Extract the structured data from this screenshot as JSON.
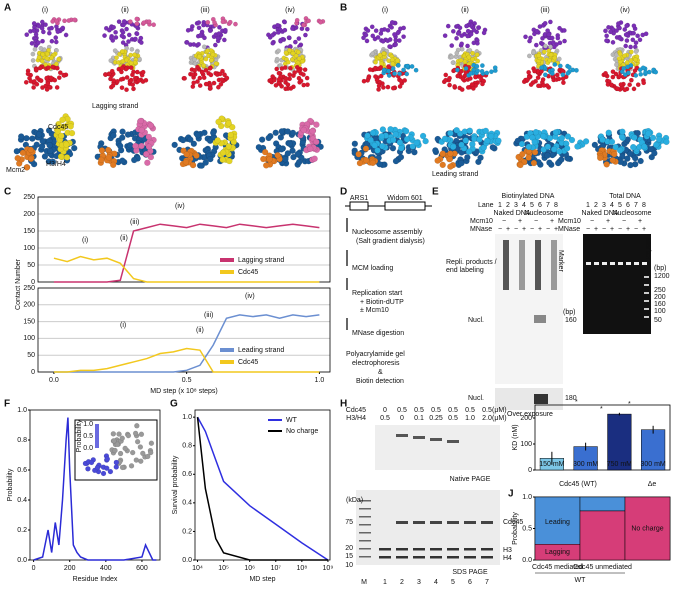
{
  "figure": {
    "panel_letters": [
      "A",
      "B",
      "C",
      "D",
      "E",
      "F",
      "G",
      "H",
      "I",
      "J"
    ],
    "panel_a": {
      "stages": [
        "(i)",
        "(ii)",
        "(iii)",
        "(iv)"
      ],
      "labels": [
        "Cdc45",
        "Lagging strand",
        "Mcm2",
        "H3/H4"
      ]
    },
    "panel_b": {
      "stages": [
        "(i)",
        "(ii)",
        "(iii)",
        "(iv)"
      ],
      "labels": [
        "Leading strand"
      ]
    },
    "panel_d": {
      "elements": [
        "ARS1",
        "Widom 601"
      ],
      "steps": [
        "Nucleosome assembly",
        "(Salt gradient dialysis)",
        "MCM loading",
        "Replication start",
        "+ Biotin-dUTP",
        "± Mcm10",
        "MNase digestion",
        "Polyacrylamide gel",
        "electrophoresis",
        "&",
        "Biotin detection"
      ]
    },
    "panel_e": {
      "title_left": "Biotinylated DNA",
      "title_right": "Total DNA",
      "lane_label": "Lane",
      "lanes": [
        "1",
        "2",
        "3",
        "4",
        "5",
        "6",
        "7",
        "8"
      ],
      "conditions": [
        "Naked DNA",
        "Nucleosome"
      ],
      "rows": [
        "Mcm10",
        "MNase"
      ],
      "mcm10_signs": [
        "−",
        "+",
        "−",
        "+"
      ],
      "mnase_signs": [
        "−",
        "+",
        "−",
        "+",
        "−",
        "+",
        "−",
        "+"
      ],
      "left_labels": [
        "Repli. products /",
        "end labeling",
        "Nucl.",
        "Nucl."
      ],
      "bp_unit": "(bp)",
      "left_bp": [
        "160",
        "180"
      ],
      "over": "Over exposure",
      "marker": "Marker",
      "right_bp": [
        "1200",
        "250",
        "200",
        "160",
        "100",
        "50"
      ]
    },
    "panel_h": {
      "rows": [
        {
          "name": "Cdc45",
          "values": [
            "0",
            "0.5",
            "0.5",
            "0.5",
            "0.5",
            "0.5",
            "0.5"
          ]
        },
        {
          "name": "H3/H4",
          "values": [
            "0.5",
            "0",
            "0.1",
            "0.25",
            "0.5",
            "1.0",
            "2.0"
          ]
        }
      ],
      "unit": "(μM)",
      "native": "Native PAGE",
      "kda": "(kDa)",
      "marker_kda": [
        "75",
        "20",
        "15",
        "10"
      ],
      "bands": [
        "Cdc45",
        "H3",
        "H4"
      ],
      "sds": "SDS PAGE",
      "lanes": [
        "M",
        "1",
        "2",
        "3",
        "4",
        "5",
        "6",
        "7"
      ]
    },
    "panel_i_groups": [
      "Cdc45 (WT)",
      "Δe"
    ]
  },
  "chart_data": [
    {
      "type": "line",
      "ylabel": "Contact Number",
      "xlim": [
        -0.06,
        1.04
      ],
      "ylim": [
        0,
        250
      ],
      "yticks": [
        0,
        50,
        100,
        150,
        200,
        250
      ],
      "grid": true,
      "legend": "lower right",
      "x": [
        0,
        0.05,
        0.1,
        0.15,
        0.2,
        0.25,
        0.3,
        0.35,
        0.4,
        0.45,
        0.5,
        0.55,
        0.6,
        0.65,
        0.7,
        0.75,
        0.8,
        0.85,
        0.9,
        0.95,
        1
      ],
      "series": [
        {
          "name": "Lagging strand",
          "color": "#c8336f",
          "values": [
            0,
            0,
            0,
            0,
            0,
            5,
            150,
            160,
            170,
            165,
            160,
            170,
            165,
            160,
            170,
            165,
            160,
            165,
            170,
            165,
            160
          ]
        },
        {
          "name": "Cdc45",
          "color": "#f2c81e",
          "values": [
            70,
            60,
            75,
            65,
            70,
            55,
            10,
            0,
            0,
            0,
            0,
            0,
            0,
            0,
            0,
            0,
            0,
            0,
            0,
            0,
            0
          ]
        }
      ],
      "annotations": [
        "(i)",
        "(ii)",
        "(iii)",
        "(iv)"
      ]
    },
    {
      "type": "line",
      "xlabel": "MD step (x 10⁸ steps)",
      "xlim": [
        -0.06,
        1.04
      ],
      "ylim": [
        0,
        250
      ],
      "yticks": [
        0,
        50,
        100,
        150,
        200,
        250
      ],
      "xticks": [
        {
          "value": 0,
          "label": "0.0"
        },
        {
          "value": 0.5,
          "label": "0.5"
        },
        {
          "value": 1,
          "label": "1.0"
        }
      ],
      "grid": true,
      "legend": "lower right",
      "x": [
        0,
        0.05,
        0.1,
        0.15,
        0.2,
        0.25,
        0.3,
        0.35,
        0.4,
        0.45,
        0.5,
        0.55,
        0.6,
        0.65,
        0.7,
        0.75,
        0.8,
        0.85,
        0.9,
        0.95,
        1
      ],
      "series": [
        {
          "name": "Leading strand",
          "color": "#6b8fd1",
          "values": [
            0,
            0,
            0,
            0,
            0,
            0,
            0,
            0,
            0,
            0,
            5,
            20,
            80,
            160,
            170,
            165,
            170,
            160,
            170,
            165,
            170
          ]
        },
        {
          "name": "Cdc45",
          "color": "#f2c81e",
          "values": [
            0,
            0,
            5,
            5,
            10,
            20,
            30,
            40,
            55,
            60,
            70,
            65,
            0,
            0,
            0,
            0,
            0,
            0,
            0,
            0,
            0
          ]
        }
      ],
      "annotations": [
        "(i)",
        "(ii)",
        "(iii)",
        "(iv)"
      ]
    },
    {
      "type": "line",
      "xlabel": "Residue Index",
      "ylabel": "Probability",
      "xlim": [
        -20,
        700
      ],
      "ylim": [
        0,
        1
      ],
      "xticks": [
        0,
        200,
        400,
        600
      ],
      "yticks": [
        {
          "value": 0,
          "label": "0.0"
        },
        {
          "value": 0.2,
          "label": "0.2"
        },
        {
          "value": 0.4,
          "label": "0.4"
        },
        {
          "value": 0.6,
          "label": "0.6"
        },
        {
          "value": 0.8,
          "label": "0.8"
        },
        {
          "value": 1,
          "label": "1.0"
        }
      ],
      "x": [
        0,
        50,
        80,
        100,
        120,
        140,
        160,
        180,
        190,
        200,
        220,
        240,
        260,
        300,
        400,
        500,
        600,
        620,
        640,
        660,
        680
      ],
      "series": [
        {
          "name": "Probability",
          "color": "#2b2bd6",
          "values": [
            0,
            0.02,
            0.2,
            0.05,
            0.25,
            0.1,
            0.4,
            0.8,
            0.95,
            0.6,
            0.1,
            0.05,
            0.02,
            0,
            0,
            0,
            0.02,
            0.1,
            0.05,
            0,
            0
          ]
        }
      ],
      "inset": {
        "title": "Probability",
        "ticks": [
          {
            "value": 1,
            "label": "1.0"
          },
          {
            "value": 0.5,
            "label": "0.5"
          },
          {
            "value": 0,
            "label": "0.0"
          }
        ]
      }
    },
    {
      "type": "line",
      "log_x": true,
      "xlabel": "MD step",
      "ylabel": "Survival probability",
      "xlim": [
        8000,
        1200000000
      ],
      "ylim": [
        0,
        1.05
      ],
      "legend": "upper right",
      "xticks": [
        {
          "value": 10000,
          "label": "10⁴"
        },
        {
          "value": 100000,
          "label": "10⁵"
        },
        {
          "value": 1000000,
          "label": "10⁶"
        },
        {
          "value": 10000000,
          "label": "10⁷"
        },
        {
          "value": 100000000,
          "label": "10⁸"
        },
        {
          "value": 1000000000,
          "label": "10⁹"
        }
      ],
      "yticks": [
        {
          "value": 0,
          "label": "0.0"
        },
        {
          "value": 0.2,
          "label": "0.2"
        },
        {
          "value": 0.4,
          "label": "0.4"
        },
        {
          "value": 0.6,
          "label": "0.6"
        },
        {
          "value": 0.8,
          "label": "0.8"
        },
        {
          "value": 1,
          "label": "1.0"
        }
      ],
      "x": [
        10000,
        20000,
        50000,
        100000,
        1000000,
        10000000,
        100000000,
        1000000000
      ],
      "series": [
        {
          "name": "WT",
          "color": "#2f2fe0",
          "values": [
            1,
            0.9,
            0.7,
            0.55,
            0.38,
            0.25,
            0.12,
            0
          ]
        },
        {
          "name": "No charge",
          "color": "#000000",
          "values": [
            1,
            0.5,
            0.15,
            0.05,
            0,
            0,
            0,
            0
          ]
        }
      ]
    },
    {
      "type": "bar",
      "ylabel": "KD (nM)",
      "ylim": [
        0,
        250
      ],
      "yticks": [
        0,
        100,
        200
      ],
      "categories": [
        "150 mM",
        "300 mM",
        "750 mM",
        "300 mM"
      ],
      "values": [
        45,
        90,
        215,
        155
      ],
      "errors": [
        25,
        15,
        5,
        15
      ],
      "colors": [
        "#7cc6e6",
        "#3a6fd0",
        "#1a2e80",
        "#3a6fd0"
      ],
      "annotations": [
        "*",
        "*",
        "*"
      ]
    },
    {
      "type": "stacked_bar",
      "ylabel": "Probability",
      "ylim": [
        0,
        1
      ],
      "yticks": [
        {
          "value": 0,
          "label": "0.0"
        },
        {
          "value": 0.5,
          "label": "0.5"
        },
        {
          "value": 1,
          "label": "1.0"
        }
      ],
      "categories": [
        "Cdc45 mediated",
        "Cdc45 unmediated",
        "No charge"
      ],
      "group_label": "WT",
      "series": [
        {
          "name": "Lagging",
          "color": "#d63d78",
          "values": [
            0.25,
            0.78,
            1
          ]
        },
        {
          "name": "Leading",
          "color": "#4a90d9",
          "values": [
            0.75,
            0.22,
            0
          ]
        }
      ]
    }
  ]
}
